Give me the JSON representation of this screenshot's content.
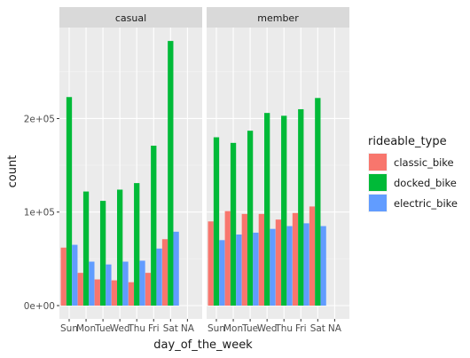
{
  "chart_data": {
    "type": "bar",
    "facets": [
      "casual",
      "member"
    ],
    "categories": [
      "Sun",
      "Mon",
      "Tue",
      "Wed",
      "Thu",
      "Fri",
      "Sat",
      "NA"
    ],
    "xlabel": "day_of_the_week",
    "ylabel": "count",
    "ylim": [
      0,
      290000
    ],
    "yticks": [
      0,
      100000,
      200000
    ],
    "ytick_labels": [
      "0e+00",
      "1e+05",
      "2e+05"
    ],
    "legend": {
      "title": "rideable_type",
      "position": "right"
    },
    "grid": true,
    "series": [
      {
        "name": "classic_bike",
        "color": "#F8766D"
      },
      {
        "name": "docked_bike",
        "color": "#00BA38"
      },
      {
        "name": "electric_bike",
        "color": "#619CFF"
      }
    ],
    "data": {
      "casual": {
        "classic_bike": [
          62000,
          35000,
          28000,
          27000,
          25000,
          35000,
          71000,
          null
        ],
        "docked_bike": [
          223000,
          122000,
          112000,
          124000,
          131000,
          171000,
          283000,
          null
        ],
        "electric_bike": [
          65000,
          47000,
          44000,
          47000,
          48000,
          61000,
          79000,
          null
        ]
      },
      "member": {
        "classic_bike": [
          90000,
          101000,
          98000,
          98000,
          92000,
          99000,
          106000,
          null
        ],
        "docked_bike": [
          180000,
          174000,
          187000,
          206000,
          203000,
          210000,
          222000,
          null
        ],
        "electric_bike": [
          70000,
          76000,
          78000,
          82000,
          85000,
          88000,
          85000,
          null
        ]
      }
    }
  }
}
